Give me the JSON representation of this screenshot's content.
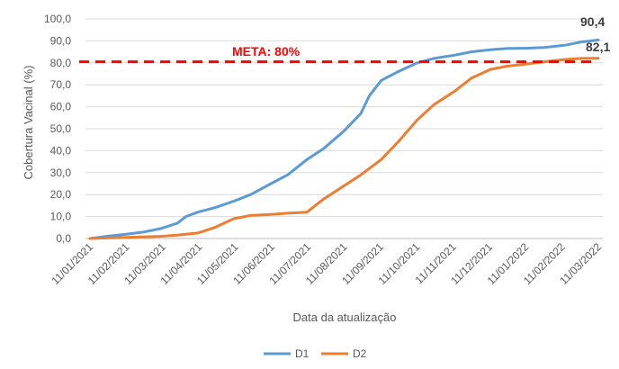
{
  "chart_data": {
    "type": "line",
    "xlabel": "Data da atualização",
    "ylabel": "Cobertura Vacinal (%)",
    "ylim": [
      0,
      100
    ],
    "yticks": [
      "0,0",
      "10,0",
      "20,0",
      "30,0",
      "40,0",
      "50,0",
      "60,0",
      "70,0",
      "80,0",
      "90,0",
      "100,0"
    ],
    "x_ticks": [
      "11/01/2021",
      "11/02/2021",
      "11/03/2021",
      "11/04/2021",
      "11/05/2021",
      "11/06/2021",
      "11/07/2021",
      "11/08/2021",
      "11/09/2021",
      "11/10/2021",
      "11/11/2021",
      "11/12/2021",
      "11/01/2022",
      "11/02/2022",
      "11/03/2022"
    ],
    "grid": "horizontal",
    "legend": "bottom",
    "reference_line": {
      "label": "META: 80%",
      "value": 80.5,
      "color": "#ff0000"
    },
    "series": [
      {
        "name": "D1",
        "color": "#5b9bd5",
        "end_label": "90,4",
        "x": [
          "2021-01-11",
          "2021-01-25",
          "2021-02-11",
          "2021-02-25",
          "2021-03-11",
          "2021-03-25",
          "2021-04-01",
          "2021-04-11",
          "2021-04-25",
          "2021-05-11",
          "2021-05-25",
          "2021-06-11",
          "2021-06-25",
          "2021-07-11",
          "2021-07-25",
          "2021-08-11",
          "2021-08-25",
          "2021-09-01",
          "2021-09-11",
          "2021-09-25",
          "2021-10-11",
          "2021-10-25",
          "2021-11-11",
          "2021-11-25",
          "2021-12-11",
          "2021-12-25",
          "2022-01-11",
          "2022-01-25",
          "2022-02-11",
          "2022-02-25",
          "2022-03-11"
        ],
        "values": [
          0,
          1,
          2,
          3,
          4.5,
          7,
          10,
          12,
          14,
          17,
          20,
          25,
          29,
          36,
          41,
          49,
          57,
          65,
          72,
          76,
          80,
          82,
          83.5,
          85,
          86,
          86.5,
          86.7,
          87,
          88,
          89.5,
          90.4
        ]
      },
      {
        "name": "D2",
        "color": "#ed7d31",
        "end_label": "82,1",
        "x": [
          "2021-01-11",
          "2021-02-11",
          "2021-03-11",
          "2021-03-25",
          "2021-04-11",
          "2021-04-25",
          "2021-05-11",
          "2021-05-25",
          "2021-06-11",
          "2021-06-25",
          "2021-07-11",
          "2021-07-25",
          "2021-08-11",
          "2021-08-25",
          "2021-09-11",
          "2021-09-25",
          "2021-10-11",
          "2021-10-25",
          "2021-11-11",
          "2021-11-25",
          "2021-12-11",
          "2021-12-25",
          "2022-01-11",
          "2022-01-25",
          "2022-02-11",
          "2022-02-25",
          "2022-03-11"
        ],
        "values": [
          0,
          0.5,
          1,
          1.5,
          2.5,
          5,
          9,
          10.5,
          11,
          11.5,
          12,
          18,
          24,
          29,
          36,
          44,
          54,
          61,
          67,
          73,
          77,
          78.5,
          79.5,
          80.5,
          81.5,
          82,
          82.1
        ]
      }
    ]
  }
}
